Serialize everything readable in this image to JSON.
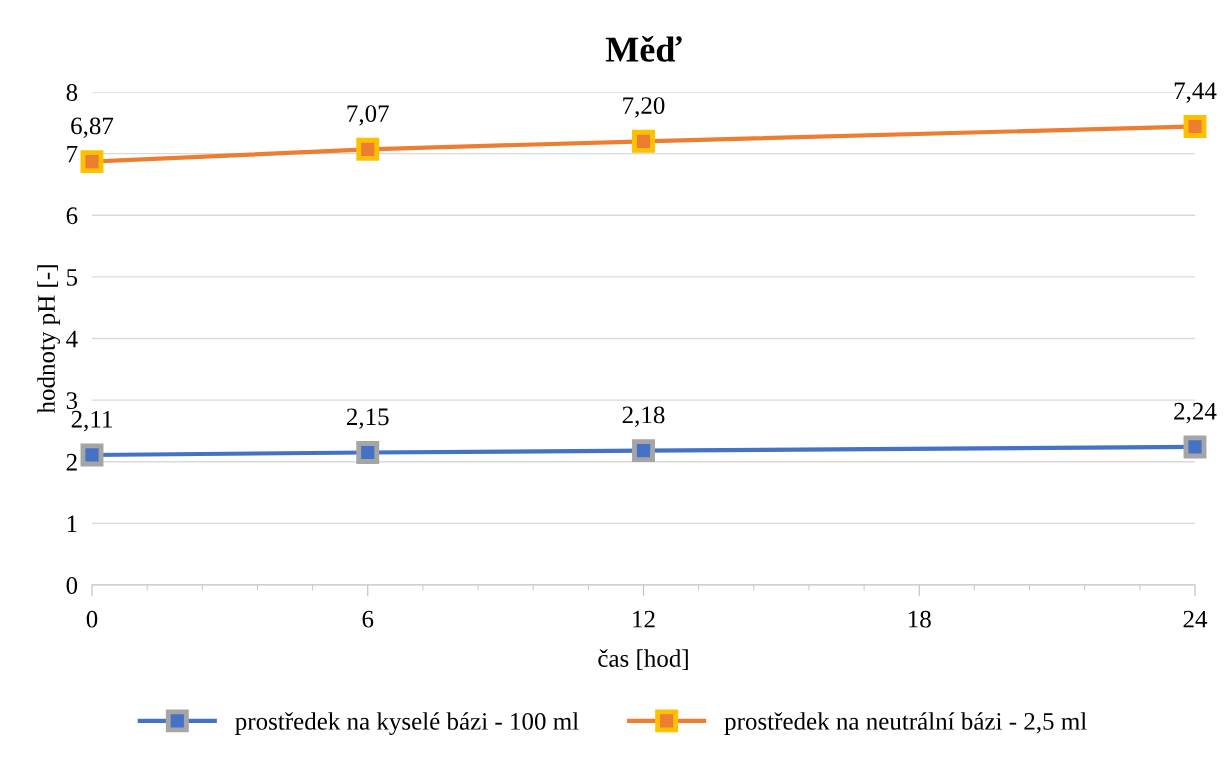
{
  "chart_data": {
    "type": "line",
    "title": "Měď",
    "xlabel": "čas [hod]",
    "ylabel": "hodnoty pH [-]",
    "x": [
      0,
      6,
      12,
      24
    ],
    "series": [
      {
        "name": "prostředek na kyselé bázi - 100 ml",
        "color": "#4472c4",
        "values": [
          2.11,
          2.15,
          2.18,
          2.24
        ],
        "value_labels": [
          "2,11",
          "2,15",
          "2,18",
          "2,24"
        ]
      },
      {
        "name": "prostředek na neutrální bázi - 2,5 ml",
        "color": "#ed7d31",
        "values": [
          6.87,
          7.07,
          7.2,
          7.44
        ],
        "value_labels": [
          "6,87",
          "7,07",
          "7,20",
          "7,44"
        ]
      }
    ],
    "xlim": [
      0,
      24
    ],
    "xticks": [
      0,
      6,
      12,
      18,
      24
    ],
    "ylim": [
      0,
      8
    ],
    "yticks": [
      0,
      1,
      2,
      3,
      4,
      5,
      6,
      7,
      8
    ],
    "grid": "y",
    "legend": "bottom",
    "marker": "square",
    "line_style": "solid"
  }
}
